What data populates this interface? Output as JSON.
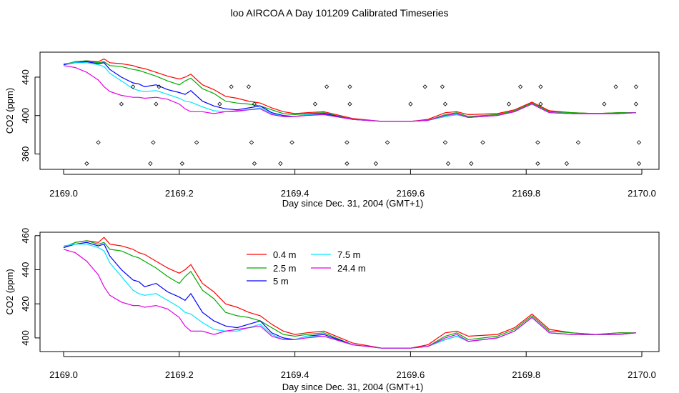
{
  "title": "loo AIRCOA A  Day 101209  Calibrated Timeseries",
  "colors": {
    "0.4 m": "#ff0000",
    "2.5 m": "#00aa00",
    "5 m": "#0000ff",
    "7.5 m": "#00e5ff",
    "24.4 m": "#e600e6"
  },
  "chart_data": [
    {
      "type": "line",
      "panel": "top",
      "xlabel": "Day since Dec. 31, 2004 (GMT+1)",
      "ylabel": "CO2 (ppm)",
      "xlim": [
        2169.0,
        2170.0
      ],
      "ylim": [
        344,
        466
      ],
      "x_ticks": [
        2169.0,
        2169.2,
        2169.4,
        2169.6,
        2169.8,
        2170.0
      ],
      "x_tick_labels": [
        "2169.0",
        "2169.2",
        "2169.4",
        "2169.6",
        "2169.8",
        "2170.0"
      ],
      "y_ticks": [
        360,
        400,
        440
      ],
      "y_tick_labels": [
        "360",
        "400",
        "440"
      ],
      "x": [
        2169.0,
        2169.02,
        2169.04,
        2169.06,
        2169.07,
        2169.08,
        2169.1,
        2169.12,
        2169.13,
        2169.14,
        2169.16,
        2169.18,
        2169.2,
        2169.21,
        2169.22,
        2169.24,
        2169.26,
        2169.28,
        2169.3,
        2169.32,
        2169.34,
        2169.36,
        2169.38,
        2169.4,
        2169.42,
        2169.45,
        2169.5,
        2169.55,
        2169.6,
        2169.63,
        2169.66,
        2169.68,
        2169.7,
        2169.75,
        2169.78,
        2169.81,
        2169.84,
        2169.88,
        2169.92,
        2169.96,
        2169.99
      ],
      "series": [
        {
          "name": "0.4 m",
          "values": [
            453,
            456,
            457,
            456,
            459,
            455,
            454,
            452,
            450,
            449,
            445,
            441,
            438,
            440,
            443,
            432,
            427,
            420,
            418,
            415,
            413,
            408,
            404,
            402,
            403,
            404,
            397,
            394,
            394,
            396,
            403,
            404,
            401,
            402,
            406,
            414,
            405,
            403,
            402,
            403,
            403
          ]
        },
        {
          "name": "2.5 m",
          "values": [
            453,
            456,
            457,
            455,
            456,
            452,
            451,
            448,
            447,
            445,
            441,
            436,
            432,
            436,
            439,
            428,
            423,
            415,
            413,
            412,
            410,
            406,
            402,
            401,
            402,
            403,
            396,
            394,
            394,
            395,
            401,
            403,
            399,
            401,
            405,
            413,
            404,
            403,
            402,
            403,
            403
          ]
        },
        {
          "name": "5 m",
          "values": [
            453,
            455,
            456,
            454,
            455,
            448,
            440,
            434,
            433,
            430,
            432,
            427,
            424,
            422,
            426,
            415,
            410,
            407,
            406,
            408,
            410,
            403,
            400,
            399,
            401,
            402,
            396,
            394,
            394,
            395,
            399,
            401,
            398,
            400,
            404,
            412,
            403,
            402,
            402,
            402,
            403
          ]
        },
        {
          "name": "7.5 m",
          "values": [
            454,
            455,
            455,
            453,
            451,
            444,
            436,
            428,
            426,
            425,
            426,
            422,
            418,
            415,
            414,
            409,
            405,
            404,
            404,
            406,
            408,
            402,
            399,
            399,
            401,
            401,
            396,
            394,
            394,
            395,
            399,
            401,
            398,
            400,
            404,
            412,
            403,
            402,
            402,
            402,
            403
          ]
        },
        {
          "name": "24.4 m",
          "values": [
            452,
            450,
            445,
            437,
            430,
            425,
            421,
            419,
            419,
            418,
            419,
            417,
            412,
            407,
            404,
            404,
            402,
            404,
            405,
            406,
            407,
            401,
            399,
            399,
            400,
            401,
            396,
            394,
            394,
            395,
            400,
            402,
            398,
            400,
            404,
            412,
            403,
            402,
            402,
            402,
            403
          ]
        }
      ],
      "markers": {
        "shape": "diamond",
        "points": [
          [
            2169.04,
            350
          ],
          [
            2169.06,
            372
          ],
          [
            2169.1,
            412
          ],
          [
            2169.12,
            430
          ],
          [
            2169.15,
            350
          ],
          [
            2169.155,
            372
          ],
          [
            2169.16,
            412
          ],
          [
            2169.165,
            430
          ],
          [
            2169.205,
            350
          ],
          [
            2169.23,
            372
          ],
          [
            2169.27,
            412
          ],
          [
            2169.29,
            430
          ],
          [
            2169.32,
            430
          ],
          [
            2169.325,
            372
          ],
          [
            2169.33,
            412
          ],
          [
            2169.33,
            350
          ],
          [
            2169.375,
            350
          ],
          [
            2169.395,
            372
          ],
          [
            2169.435,
            412
          ],
          [
            2169.455,
            430
          ],
          [
            2169.49,
            350
          ],
          [
            2169.49,
            372
          ],
          [
            2169.495,
            412
          ],
          [
            2169.495,
            430
          ],
          [
            2169.54,
            350
          ],
          [
            2169.56,
            372
          ],
          [
            2169.6,
            412
          ],
          [
            2169.625,
            430
          ],
          [
            2169.655,
            430
          ],
          [
            2169.66,
            412
          ],
          [
            2169.66,
            372
          ],
          [
            2169.665,
            350
          ],
          [
            2169.705,
            350
          ],
          [
            2169.725,
            372
          ],
          [
            2169.77,
            412
          ],
          [
            2169.79,
            430
          ],
          [
            2169.82,
            350
          ],
          [
            2169.82,
            372
          ],
          [
            2169.825,
            412
          ],
          [
            2169.825,
            430
          ],
          [
            2169.87,
            350
          ],
          [
            2169.89,
            372
          ],
          [
            2169.935,
            412
          ],
          [
            2169.955,
            430
          ],
          [
            2169.99,
            430
          ],
          [
            2169.99,
            412
          ],
          [
            2169.995,
            372
          ],
          [
            2169.995,
            350
          ]
        ]
      }
    },
    {
      "type": "line",
      "panel": "bottom",
      "xlabel": "Day since Dec. 31, 2004 (GMT+1)",
      "ylabel": "CO2 (ppm)",
      "xlim": [
        2169.0,
        2170.0
      ],
      "ylim": [
        392,
        462
      ],
      "x_ticks": [
        2169.0,
        2169.2,
        2169.4,
        2169.6,
        2169.8,
        2170.0
      ],
      "x_tick_labels": [
        "2169.0",
        "2169.2",
        "2169.4",
        "2169.6",
        "2169.8",
        "2170.0"
      ],
      "y_ticks": [
        400,
        420,
        440,
        460
      ],
      "y_tick_labels": [
        "400",
        "420",
        "440",
        "460"
      ],
      "legend": [
        "0.4 m",
        "2.5 m",
        "5 m",
        "7.5 m",
        "24.4 m"
      ],
      "legend_position": "top-center",
      "x": [
        2169.0,
        2169.02,
        2169.04,
        2169.06,
        2169.07,
        2169.08,
        2169.1,
        2169.12,
        2169.13,
        2169.14,
        2169.16,
        2169.18,
        2169.2,
        2169.21,
        2169.22,
        2169.24,
        2169.26,
        2169.28,
        2169.3,
        2169.32,
        2169.34,
        2169.36,
        2169.38,
        2169.4,
        2169.42,
        2169.45,
        2169.5,
        2169.55,
        2169.6,
        2169.63,
        2169.66,
        2169.68,
        2169.7,
        2169.75,
        2169.78,
        2169.81,
        2169.84,
        2169.88,
        2169.92,
        2169.96,
        2169.99
      ],
      "series": [
        {
          "name": "0.4 m",
          "values": [
            453,
            456,
            457,
            456,
            459,
            455,
            454,
            452,
            450,
            449,
            445,
            441,
            438,
            440,
            443,
            432,
            427,
            420,
            418,
            415,
            413,
            408,
            404,
            402,
            403,
            404,
            397,
            394,
            394,
            396,
            403,
            404,
            401,
            402,
            406,
            414,
            405,
            403,
            402,
            403,
            403
          ]
        },
        {
          "name": "2.5 m",
          "values": [
            453,
            456,
            457,
            455,
            456,
            452,
            451,
            448,
            447,
            445,
            441,
            436,
            432,
            436,
            439,
            428,
            423,
            415,
            413,
            412,
            410,
            406,
            402,
            401,
            402,
            403,
            396,
            394,
            394,
            395,
            401,
            403,
            399,
            401,
            405,
            413,
            404,
            403,
            402,
            403,
            403
          ]
        },
        {
          "name": "5 m",
          "values": [
            453,
            455,
            456,
            454,
            455,
            448,
            440,
            434,
            433,
            430,
            432,
            427,
            424,
            422,
            426,
            415,
            410,
            407,
            406,
            408,
            410,
            403,
            400,
            399,
            401,
            402,
            396,
            394,
            394,
            395,
            399,
            401,
            398,
            400,
            404,
            412,
            403,
            402,
            402,
            402,
            403
          ]
        },
        {
          "name": "7.5 m",
          "values": [
            454,
            455,
            455,
            453,
            451,
            444,
            436,
            428,
            426,
            425,
            426,
            422,
            418,
            415,
            414,
            409,
            405,
            404,
            404,
            406,
            408,
            402,
            399,
            399,
            401,
            401,
            396,
            394,
            394,
            395,
            399,
            401,
            398,
            400,
            404,
            412,
            403,
            402,
            402,
            402,
            403
          ]
        },
        {
          "name": "24.4 m",
          "values": [
            452,
            450,
            445,
            437,
            430,
            425,
            421,
            419,
            419,
            418,
            419,
            417,
            412,
            407,
            404,
            404,
            402,
            404,
            405,
            406,
            407,
            401,
            399,
            399,
            400,
            401,
            396,
            394,
            394,
            395,
            400,
            402,
            398,
            400,
            404,
            412,
            403,
            402,
            402,
            402,
            403
          ]
        }
      ]
    }
  ]
}
